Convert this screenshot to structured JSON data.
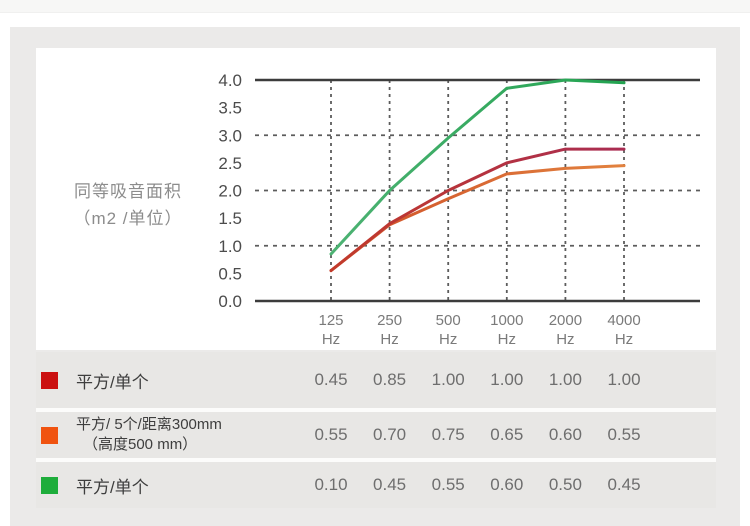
{
  "chart_data": {
    "type": "line",
    "title": "",
    "ylabel_line1": "同等吸音面积",
    "ylabel_line2": "（m2 /单位）",
    "ylabel": "同等吸音面积（m2 /单位）",
    "hz_label": "Hz",
    "categories": [
      "125 Hz",
      "250 Hz",
      "500 Hz",
      "1000 Hz",
      "2000 Hz",
      "4000 Hz"
    ],
    "x_ticks": [
      "125",
      "250",
      "500",
      "1000",
      "2000",
      "4000"
    ],
    "y_ticks": [
      "4.0",
      "3.5",
      "3.0",
      "2.5",
      "2.0",
      "1.5",
      "1.0",
      "0.5",
      "0.0"
    ],
    "ylim": [
      0,
      4
    ],
    "grid_y_dashed": [
      3.0,
      2.0,
      1.0
    ],
    "grid": "dashed",
    "legend_position": "table-below",
    "series": [
      {
        "id": "orange",
        "name": "平方/ 5个/距离300mm（高度500 mm）",
        "color_start": "#cf4f28",
        "color_end": "#e2823f",
        "values": [
          0.55,
          1.38,
          1.85,
          2.3,
          2.4,
          2.45
        ]
      },
      {
        "id": "red",
        "name": "平方/单个",
        "color_start": "#c23a2a",
        "color_end": "#a92c52",
        "values": [
          0.55,
          1.4,
          2.0,
          2.5,
          2.75,
          2.75
        ]
      },
      {
        "id": "green",
        "name": "平方/单个",
        "color_start": "#4db273",
        "color_end": "#22a350",
        "values": [
          0.85,
          2.0,
          2.95,
          3.85,
          4.0,
          3.95
        ]
      }
    ],
    "table_rows": [
      {
        "swatch_color": "#cb1010",
        "label": "平方/单个",
        "values": [
          "0.45",
          "0.85",
          "1.00",
          "1.00",
          "1.00",
          "1.00"
        ]
      },
      {
        "swatch_color": "#f05310",
        "label": "平方/ 5个/距离300mm",
        "label2": "（高度500 mm）",
        "values": [
          "0.55",
          "0.70",
          "0.75",
          "0.65",
          "0.60",
          "0.55"
        ]
      },
      {
        "swatch_color": "#1ead3b",
        "label": "平方/单个",
        "values": [
          "0.10",
          "0.45",
          "0.55",
          "0.60",
          "0.50",
          "0.45"
        ]
      }
    ],
    "colors": {
      "panel_bg": "#ebeae9",
      "row_bg": "#e8e7e5",
      "card_bg": "#ffffff",
      "axis_line": "#3c3c3c",
      "grid_line": "#5c5c5c",
      "y_tick_text": "#4c4c4c",
      "x_tick_text": "#7a7a7a",
      "axis_title_text": "#8c8c8c",
      "row_label_text": "#3e3e3e",
      "value_text": "#6e6e6e"
    }
  }
}
